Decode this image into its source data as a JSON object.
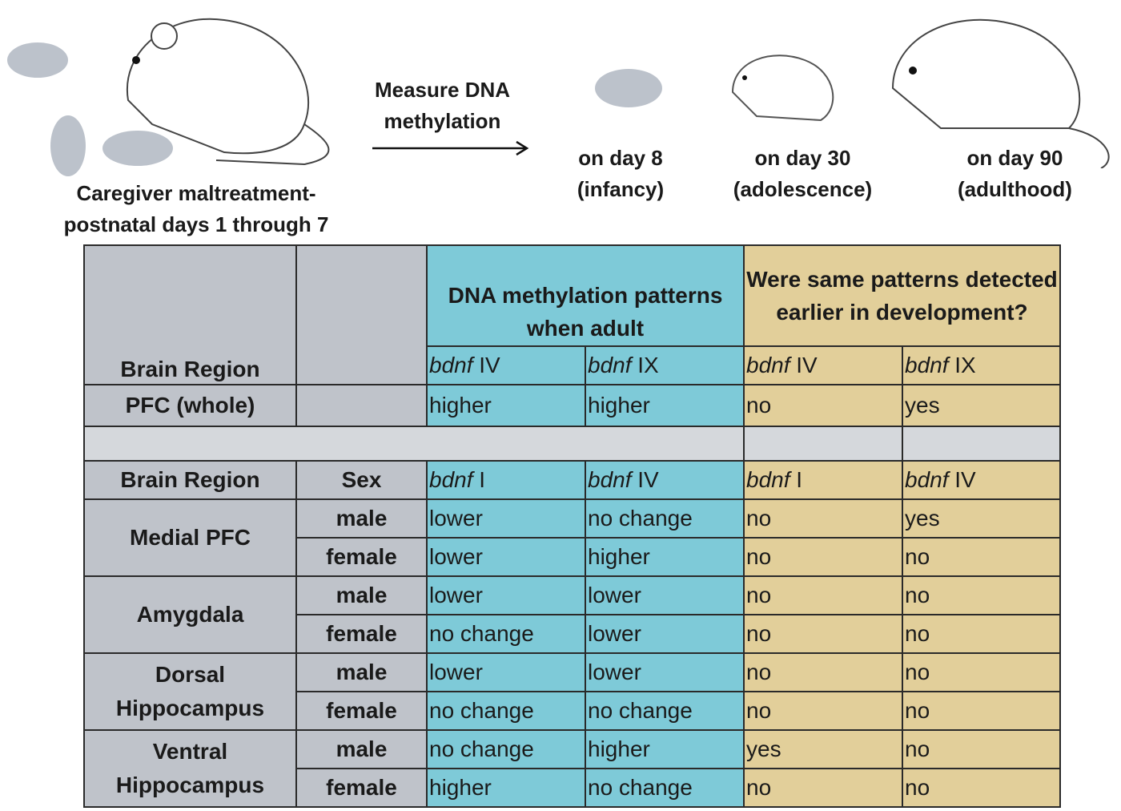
{
  "illustration": {
    "caregiver_label": [
      "Caregiver maltreatment-",
      "postnatal days 1 through 7"
    ],
    "arrow_label": [
      "Measure DNA",
      "methylation"
    ],
    "timepoints": [
      {
        "line1": "on day 8",
        "line2": "(infancy)"
      },
      {
        "line1": "on day 30",
        "line2": "(adolescence)"
      },
      {
        "line1": "on day 90",
        "line2": "(adulthood)"
      }
    ]
  },
  "colors": {
    "gray": "#bfc3ca",
    "cyan": "#7ecad8",
    "tan": "#e2cf9a"
  },
  "table1": {
    "col_region": "Brain Region",
    "group_adult": "DNA methylation patterns when adult",
    "group_earlier": "Were same patterns detected earlier in development?",
    "genes": [
      {
        "g": "bdnf",
        "n": "IV"
      },
      {
        "g": "bdnf",
        "n": "IX"
      },
      {
        "g": "bdnf",
        "n": "IV"
      },
      {
        "g": "bdnf",
        "n": "IX"
      }
    ],
    "row": {
      "region": "PFC (whole)",
      "values": [
        "higher",
        "higher",
        "no",
        "yes"
      ]
    }
  },
  "table2": {
    "col_region": "Brain Region",
    "col_sex": "Sex",
    "genes": [
      {
        "g": "bdnf",
        "n": "I"
      },
      {
        "g": "bdnf",
        "n": "IV"
      },
      {
        "g": "bdnf",
        "n": "I"
      },
      {
        "g": "bdnf",
        "n": "IV"
      }
    ],
    "regions": [
      {
        "name": "Medial PFC",
        "rows": [
          {
            "sex": "male",
            "values": [
              "lower",
              "no change",
              "no",
              "yes"
            ]
          },
          {
            "sex": "female",
            "values": [
              "lower",
              "higher",
              "no",
              "no"
            ]
          }
        ]
      },
      {
        "name": "Amygdala",
        "rows": [
          {
            "sex": "male",
            "values": [
              "lower",
              "lower",
              "no",
              "no"
            ]
          },
          {
            "sex": "female",
            "values": [
              "no change",
              "lower",
              "no",
              "no"
            ]
          }
        ]
      },
      {
        "name": "Dorsal Hippocampus",
        "rows": [
          {
            "sex": "male",
            "values": [
              "lower",
              "lower",
              "no",
              "no"
            ]
          },
          {
            "sex": "female",
            "values": [
              "no change",
              "no change",
              "no",
              "no"
            ]
          }
        ]
      },
      {
        "name": "Ventral Hippocampus",
        "rows": [
          {
            "sex": "male",
            "values": [
              "no change",
              "higher",
              "yes",
              "no"
            ]
          },
          {
            "sex": "female",
            "values": [
              "higher",
              "no change",
              "no",
              "no"
            ]
          }
        ]
      }
    ]
  }
}
